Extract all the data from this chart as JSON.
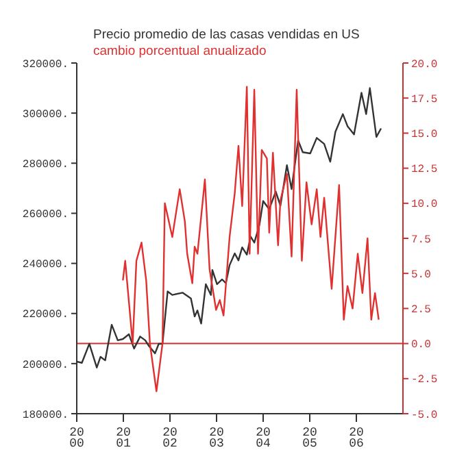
{
  "chart_data": {
    "type": "line",
    "series": [
      {
        "name": "Precio promedio de las casas vendidas en US",
        "color": "#333333",
        "x": [
          2000.0,
          2000.11,
          2000.27,
          2000.43,
          2000.51,
          2000.61,
          2000.75,
          2000.88,
          2000.99,
          2001.12,
          2001.23,
          2001.36,
          2001.47,
          2001.55,
          2001.68,
          2001.76,
          2001.84,
          2001.95,
          2002.05,
          2002.27,
          2002.45,
          2002.53,
          2002.59,
          2002.67,
          2002.77,
          2002.88,
          2002.91,
          2003.01,
          2003.12,
          2003.2,
          2003.28,
          2003.39,
          2003.47,
          2003.55,
          2003.65,
          2003.73,
          2003.81,
          2003.92,
          2004.0,
          2004.13,
          2004.27,
          2004.37,
          2004.51,
          2004.61,
          2004.75,
          2004.85,
          2005.01,
          2005.15,
          2005.31,
          2005.44,
          2005.55,
          2005.71,
          2005.81,
          2005.95,
          2006.11,
          2006.21,
          2006.29,
          2006.43,
          2006.53
        ],
        "values": [
          200800,
          200300,
          207900,
          198400,
          202700,
          201300,
          215500,
          209300,
          209800,
          211700,
          206000,
          210800,
          209300,
          207000,
          204100,
          207900,
          207900,
          228800,
          227400,
          228300,
          226000,
          218800,
          221200,
          216000,
          231700,
          227400,
          237400,
          231700,
          233600,
          232100,
          239300,
          244000,
          241200,
          246400,
          243500,
          250700,
          248300,
          255400,
          264900,
          261600,
          268700,
          263000,
          279200,
          269700,
          289100,
          284400,
          283900,
          290100,
          287700,
          280600,
          292500,
          299600,
          294800,
          291500,
          308100,
          299600,
          310000,
          290500,
          293900
        ]
      },
      {
        "name": "cambio porcentual anualizado",
        "color": "#e03030",
        "axis": "y2",
        "x": [
          2000.99,
          2001.04,
          2001.2,
          2001.28,
          2001.39,
          2001.49,
          2001.57,
          2001.71,
          2001.84,
          2001.89,
          2002.05,
          2002.21,
          2002.32,
          2002.37,
          2002.48,
          2002.53,
          2002.59,
          2002.75,
          2002.85,
          2002.99,
          2003.07,
          2003.15,
          2003.28,
          2003.39,
          2003.47,
          2003.55,
          2003.65,
          2003.71,
          2003.81,
          2003.89,
          2003.97,
          2004.08,
          2004.13,
          2004.21,
          2004.32,
          2004.37,
          2004.51,
          2004.61,
          2004.72,
          2004.83,
          2004.93,
          2005.04,
          2005.15,
          2005.23,
          2005.31,
          2005.47,
          2005.63,
          2005.73,
          2005.81,
          2005.92,
          2006.03,
          2006.13,
          2006.24,
          2006.32,
          2006.4,
          2006.48
        ],
        "values": [
          4.5,
          5.9,
          0.0,
          5.9,
          7.2,
          4.5,
          0.0,
          -3.4,
          0.0,
          10.0,
          7.6,
          11.0,
          8.7,
          6.4,
          4.3,
          6.9,
          6.4,
          11.7,
          5.3,
          2.4,
          3.1,
          2.0,
          7.6,
          10.7,
          14.1,
          9.8,
          18.3,
          6.4,
          18.1,
          6.4,
          13.8,
          13.2,
          7.9,
          13.6,
          7.0,
          10.2,
          12.1,
          6.2,
          18.1,
          5.9,
          11.5,
          8.5,
          11.0,
          7.6,
          10.4,
          3.9,
          11.3,
          1.7,
          4.1,
          2.5,
          6.4,
          3.6,
          7.5,
          1.7,
          3.6,
          1.7
        ]
      }
    ],
    "xlim": [
      2000,
      2007
    ],
    "xticks": [
      2000,
      2001,
      2002,
      2003,
      2004,
      2005,
      2006
    ],
    "ylim": [
      180000,
      320000
    ],
    "yticks": [
      {
        "value": 180000,
        "label": "180000."
      },
      {
        "value": 200000,
        "label": "200000."
      },
      {
        "value": 220000,
        "label": "220000."
      },
      {
        "value": 240000,
        "label": "240000."
      },
      {
        "value": 260000,
        "label": "260000."
      },
      {
        "value": 280000,
        "label": "280000."
      },
      {
        "value": 300000,
        "label": "300000."
      },
      {
        "value": 320000,
        "label": "320000."
      }
    ],
    "y2lim": [
      -5,
      20
    ],
    "y2ticks": [
      {
        "value": -5,
        "label": "-5.0"
      },
      {
        "value": -2.5,
        "label": "-2.5"
      },
      {
        "value": 0,
        "label": "0.0"
      },
      {
        "value": 2.5,
        "label": "2.5"
      },
      {
        "value": 5,
        "label": "5.0"
      },
      {
        "value": 7.5,
        "label": "7.5"
      },
      {
        "value": 10,
        "label": "10.0"
      },
      {
        "value": 12.5,
        "label": "12.5"
      },
      {
        "value": 15,
        "label": "15.0"
      },
      {
        "value": 17.5,
        "label": "17.5"
      },
      {
        "value": 20,
        "label": "20.0"
      }
    ],
    "ref_lines": [
      {
        "axis": "y2",
        "value": 0,
        "color": "#c83232"
      }
    ],
    "legend": "top left",
    "grid": false,
    "marker": "none"
  }
}
